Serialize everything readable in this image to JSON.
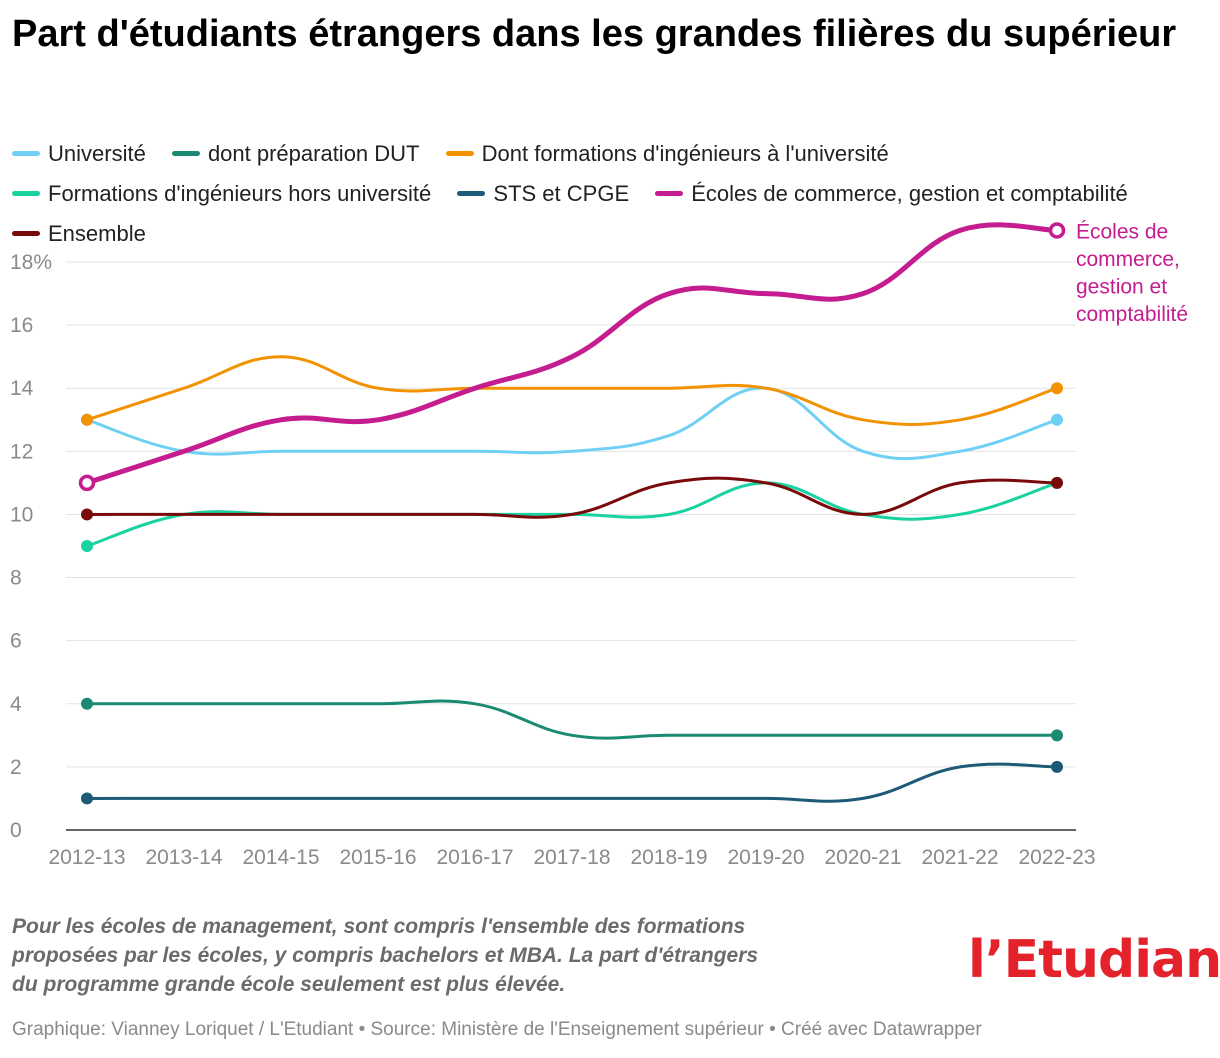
{
  "title": "Part d'étudiants étrangers dans les grandes filières du supérieur",
  "legend": [
    {
      "label": "Université",
      "color": "#6fd0f5"
    },
    {
      "label": "dont préparation DUT",
      "color": "#1a8a72"
    },
    {
      "label": "Dont formations d'ingénieurs à l'université",
      "color": "#f39200"
    },
    {
      "label": "Formations d'ingénieurs hors université",
      "color": "#19d2a0"
    },
    {
      "label": "STS et CPGE",
      "color": "#1c5a78"
    },
    {
      "label": "Écoles de commerce, gestion et comptabilité",
      "color": "#c51c8f"
    },
    {
      "label": "Ensemble",
      "color": "#7a0a0a"
    }
  ],
  "chart_data": {
    "type": "line",
    "title": "Part d'étudiants étrangers dans les grandes filières du supérieur",
    "categories": [
      "2012-13",
      "2013-14",
      "2014-15",
      "2015-16",
      "2016-17",
      "2017-18",
      "2018-19",
      "2019-20",
      "2020-21",
      "2021-22",
      "2022-23"
    ],
    "y_ticks": [
      0,
      2,
      4,
      6,
      8,
      10,
      12,
      14,
      16,
      18
    ],
    "y_tick_labels": [
      "0",
      "2",
      "4",
      "6",
      "8",
      "10",
      "12",
      "14",
      "16",
      "18%"
    ],
    "ylim": [
      0,
      19.5
    ],
    "grid": true,
    "series": [
      {
        "name": "Université",
        "color": "#6fd0f5",
        "values": [
          13,
          12,
          12,
          12,
          12,
          12,
          12.5,
          14,
          12,
          12,
          13
        ]
      },
      {
        "name": "dont préparation DUT",
        "color": "#1a8a72",
        "values": [
          4,
          4,
          4,
          4,
          4,
          3,
          3,
          3,
          3,
          3,
          3
        ]
      },
      {
        "name": "Dont formations d'ingénieurs à l'université",
        "color": "#f39200",
        "values": [
          13,
          14,
          15,
          14,
          14,
          14,
          14,
          14,
          13,
          13,
          14
        ]
      },
      {
        "name": "Formations d'ingénieurs hors université",
        "color": "#19d2a0",
        "values": [
          9,
          10,
          10,
          10,
          10,
          10,
          10,
          11,
          10,
          10,
          11
        ]
      },
      {
        "name": "STS et CPGE",
        "color": "#1c5a78",
        "values": [
          1,
          1,
          1,
          1,
          1,
          1,
          1,
          1,
          1,
          2,
          2
        ]
      },
      {
        "name": "Écoles de commerce, gestion et comptabilité",
        "color": "#c51c8f",
        "values": [
          11,
          12,
          13,
          13,
          14,
          15,
          17,
          17,
          17,
          19,
          19
        ],
        "emphasized": true
      },
      {
        "name": "Ensemble",
        "color": "#7a0a0a",
        "values": [
          10,
          10,
          10,
          10,
          10,
          10,
          11,
          11,
          10,
          11,
          11
        ]
      }
    ],
    "annotation": {
      "series": "Écoles de commerce, gestion et comptabilité",
      "lines": [
        "Écoles de",
        "commerce,",
        "gestion et",
        "comptabilité"
      ]
    }
  },
  "note": "Pour les écoles de management, sont compris l'ensemble des formations proposées par les écoles, y compris bachelors et MBA. La part d'étrangers du programme grande école seulement est plus élevée.",
  "credit": "Graphique: Vianney Loriquet / L'Etudiant • Source: Ministère de l'Enseignement supérieur • Créé avec Datawrapper",
  "logo": "l’Etudiant"
}
